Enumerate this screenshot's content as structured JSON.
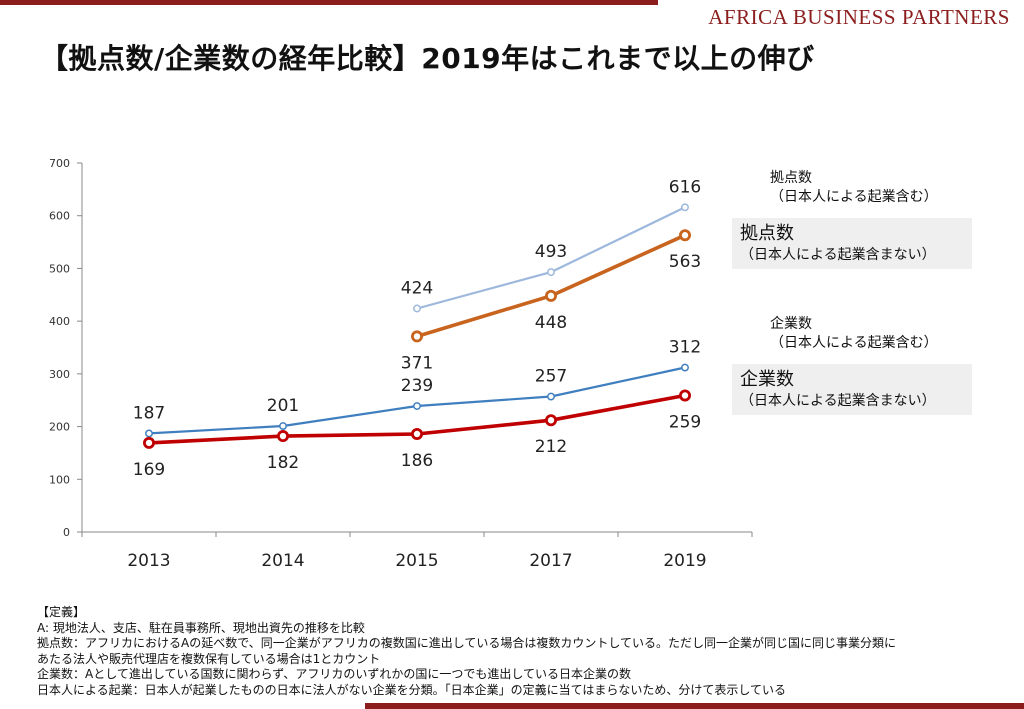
{
  "brand": "Africa Business Partners",
  "title": "【拠点数/企業数の経年比較】2019年はこれまで以上の伸び",
  "legend": {
    "bases_incl": {
      "line1": "拠点数",
      "line2": "（日本人による起業含む）"
    },
    "bases_excl": {
      "line1": "拠点数",
      "line2": "（日本人による起業含まない）"
    },
    "companies_incl": {
      "line1": "企業数",
      "line2": "（日本人による起業含む）"
    },
    "companies_excl": {
      "line1": "企業数",
      "line2": "（日本人による起業含まない）"
    }
  },
  "definitions": [
    "【定義】",
    "A: 現地法人、支店、駐在員事務所、現地出資先の推移を比較",
    "拠点数：アフリカにおけるAの延べ数で、同一企業がアフリカの複数国に進出している場合は複数カウントしている。ただし同一企業が同じ国に同じ事業分類に",
    "あたる法人や販売代理店を複数保有している場合は1とカウント",
    "企業数：Aとして進出している国数に関わらず、アフリカのいずれかの国に一つでも進出している日本企業の数",
    "日本人による起業：日本人が起業したものの日本に法人がない企業を分類。「日本企業」の定義に当てはまらないため、分けて表示している"
  ],
  "chart_data": {
    "type": "line",
    "categories": [
      "2013",
      "2014",
      "2015",
      "2017",
      "2019"
    ],
    "ylim": [
      0,
      700
    ],
    "yticks": [
      0,
      100,
      200,
      300,
      400,
      500,
      600,
      700
    ],
    "grid": false,
    "series": [
      {
        "name": "拠点数（日本人による起業含む）",
        "values": [
          null,
          null,
          424,
          493,
          616
        ],
        "color": "#9db8dc"
      },
      {
        "name": "拠点数（日本人による起業含まない）",
        "values": [
          null,
          null,
          371,
          448,
          563
        ],
        "color": "#c8641e"
      },
      {
        "name": "企業数（日本人による起業含む）",
        "values": [
          187,
          201,
          239,
          257,
          312
        ],
        "color": "#3f7fbf"
      },
      {
        "name": "企業数（日本人による起業含まない）",
        "values": [
          169,
          182,
          186,
          212,
          259
        ],
        "color": "#c00000"
      }
    ]
  }
}
